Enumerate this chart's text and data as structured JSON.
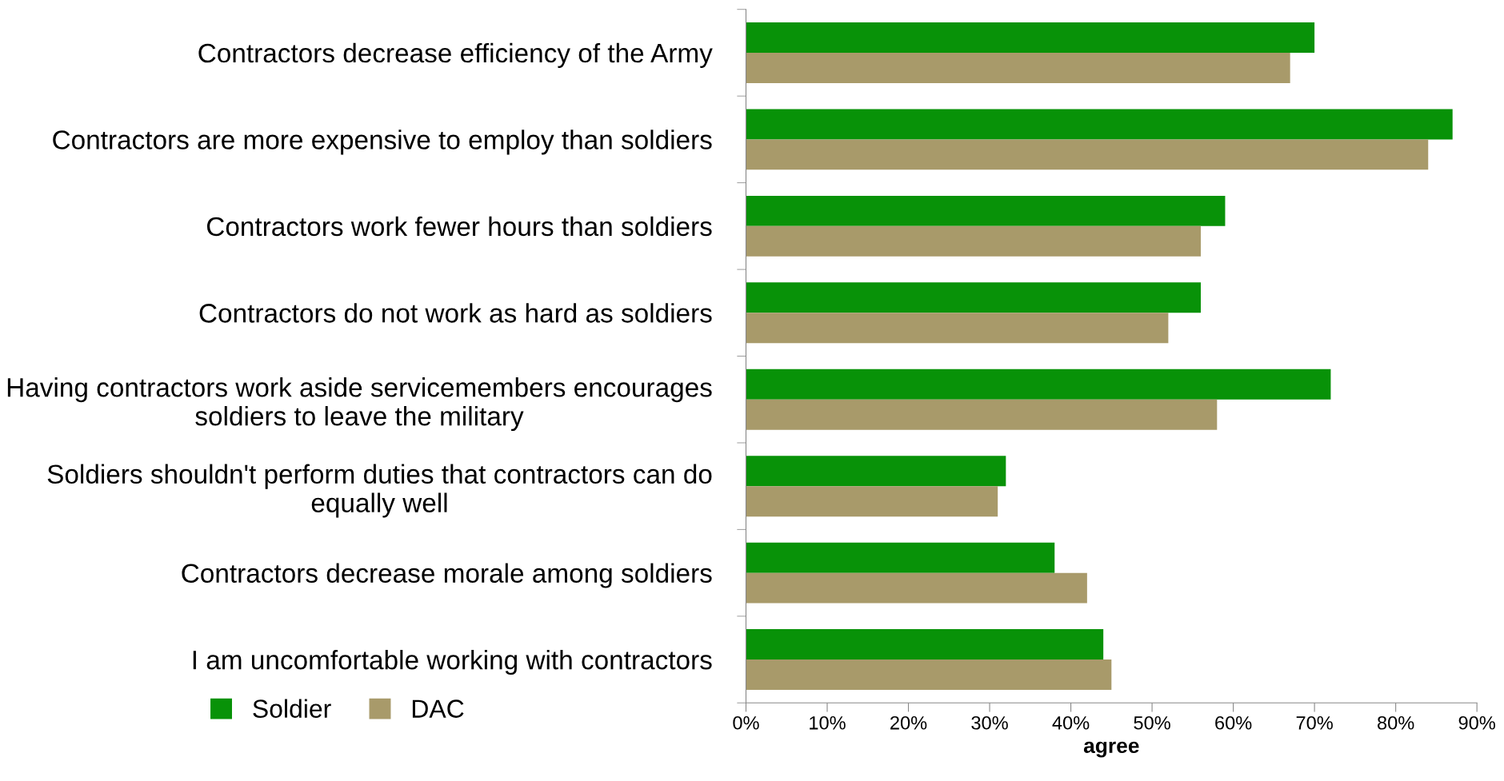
{
  "chart_data": {
    "type": "bar",
    "orientation": "horizontal",
    "xlabel": "agree",
    "categories": [
      "Contractors decrease efficiency of the Army",
      "Contractors are more expensive to employ than soldiers",
      "Contractors work fewer hours than soldiers",
      "Contractors do not work as hard as soldiers",
      "Having contractors work aside servicemembers encourages\nsoldiers to leave the military",
      "Soldiers shouldn't perform duties that contractors can do\nequally well",
      "Contractors decrease morale among soldiers",
      "I am uncomfortable working with contractors"
    ],
    "series": [
      {
        "name": "Soldier",
        "color": "#089208",
        "values": [
          70,
          87,
          59,
          56,
          72,
          32,
          38,
          44
        ]
      },
      {
        "name": "DAC",
        "color": "#a89a6a",
        "values": [
          67,
          84,
          56,
          52,
          58,
          31,
          42,
          45
        ]
      }
    ],
    "xlim": [
      0,
      90
    ],
    "xticks": [
      {
        "value": 0,
        "label": "0%"
      },
      {
        "value": 10,
        "label": "10%"
      },
      {
        "value": 20,
        "label": "20%"
      },
      {
        "value": 30,
        "label": "30%"
      },
      {
        "value": 40,
        "label": "40%"
      },
      {
        "value": 50,
        "label": "50%"
      },
      {
        "value": 60,
        "label": "60%"
      },
      {
        "value": 70,
        "label": "70%"
      },
      {
        "value": 80,
        "label": "80%"
      },
      {
        "value": 90,
        "label": "90%"
      }
    ],
    "grid": false,
    "legend": "bottom left"
  }
}
